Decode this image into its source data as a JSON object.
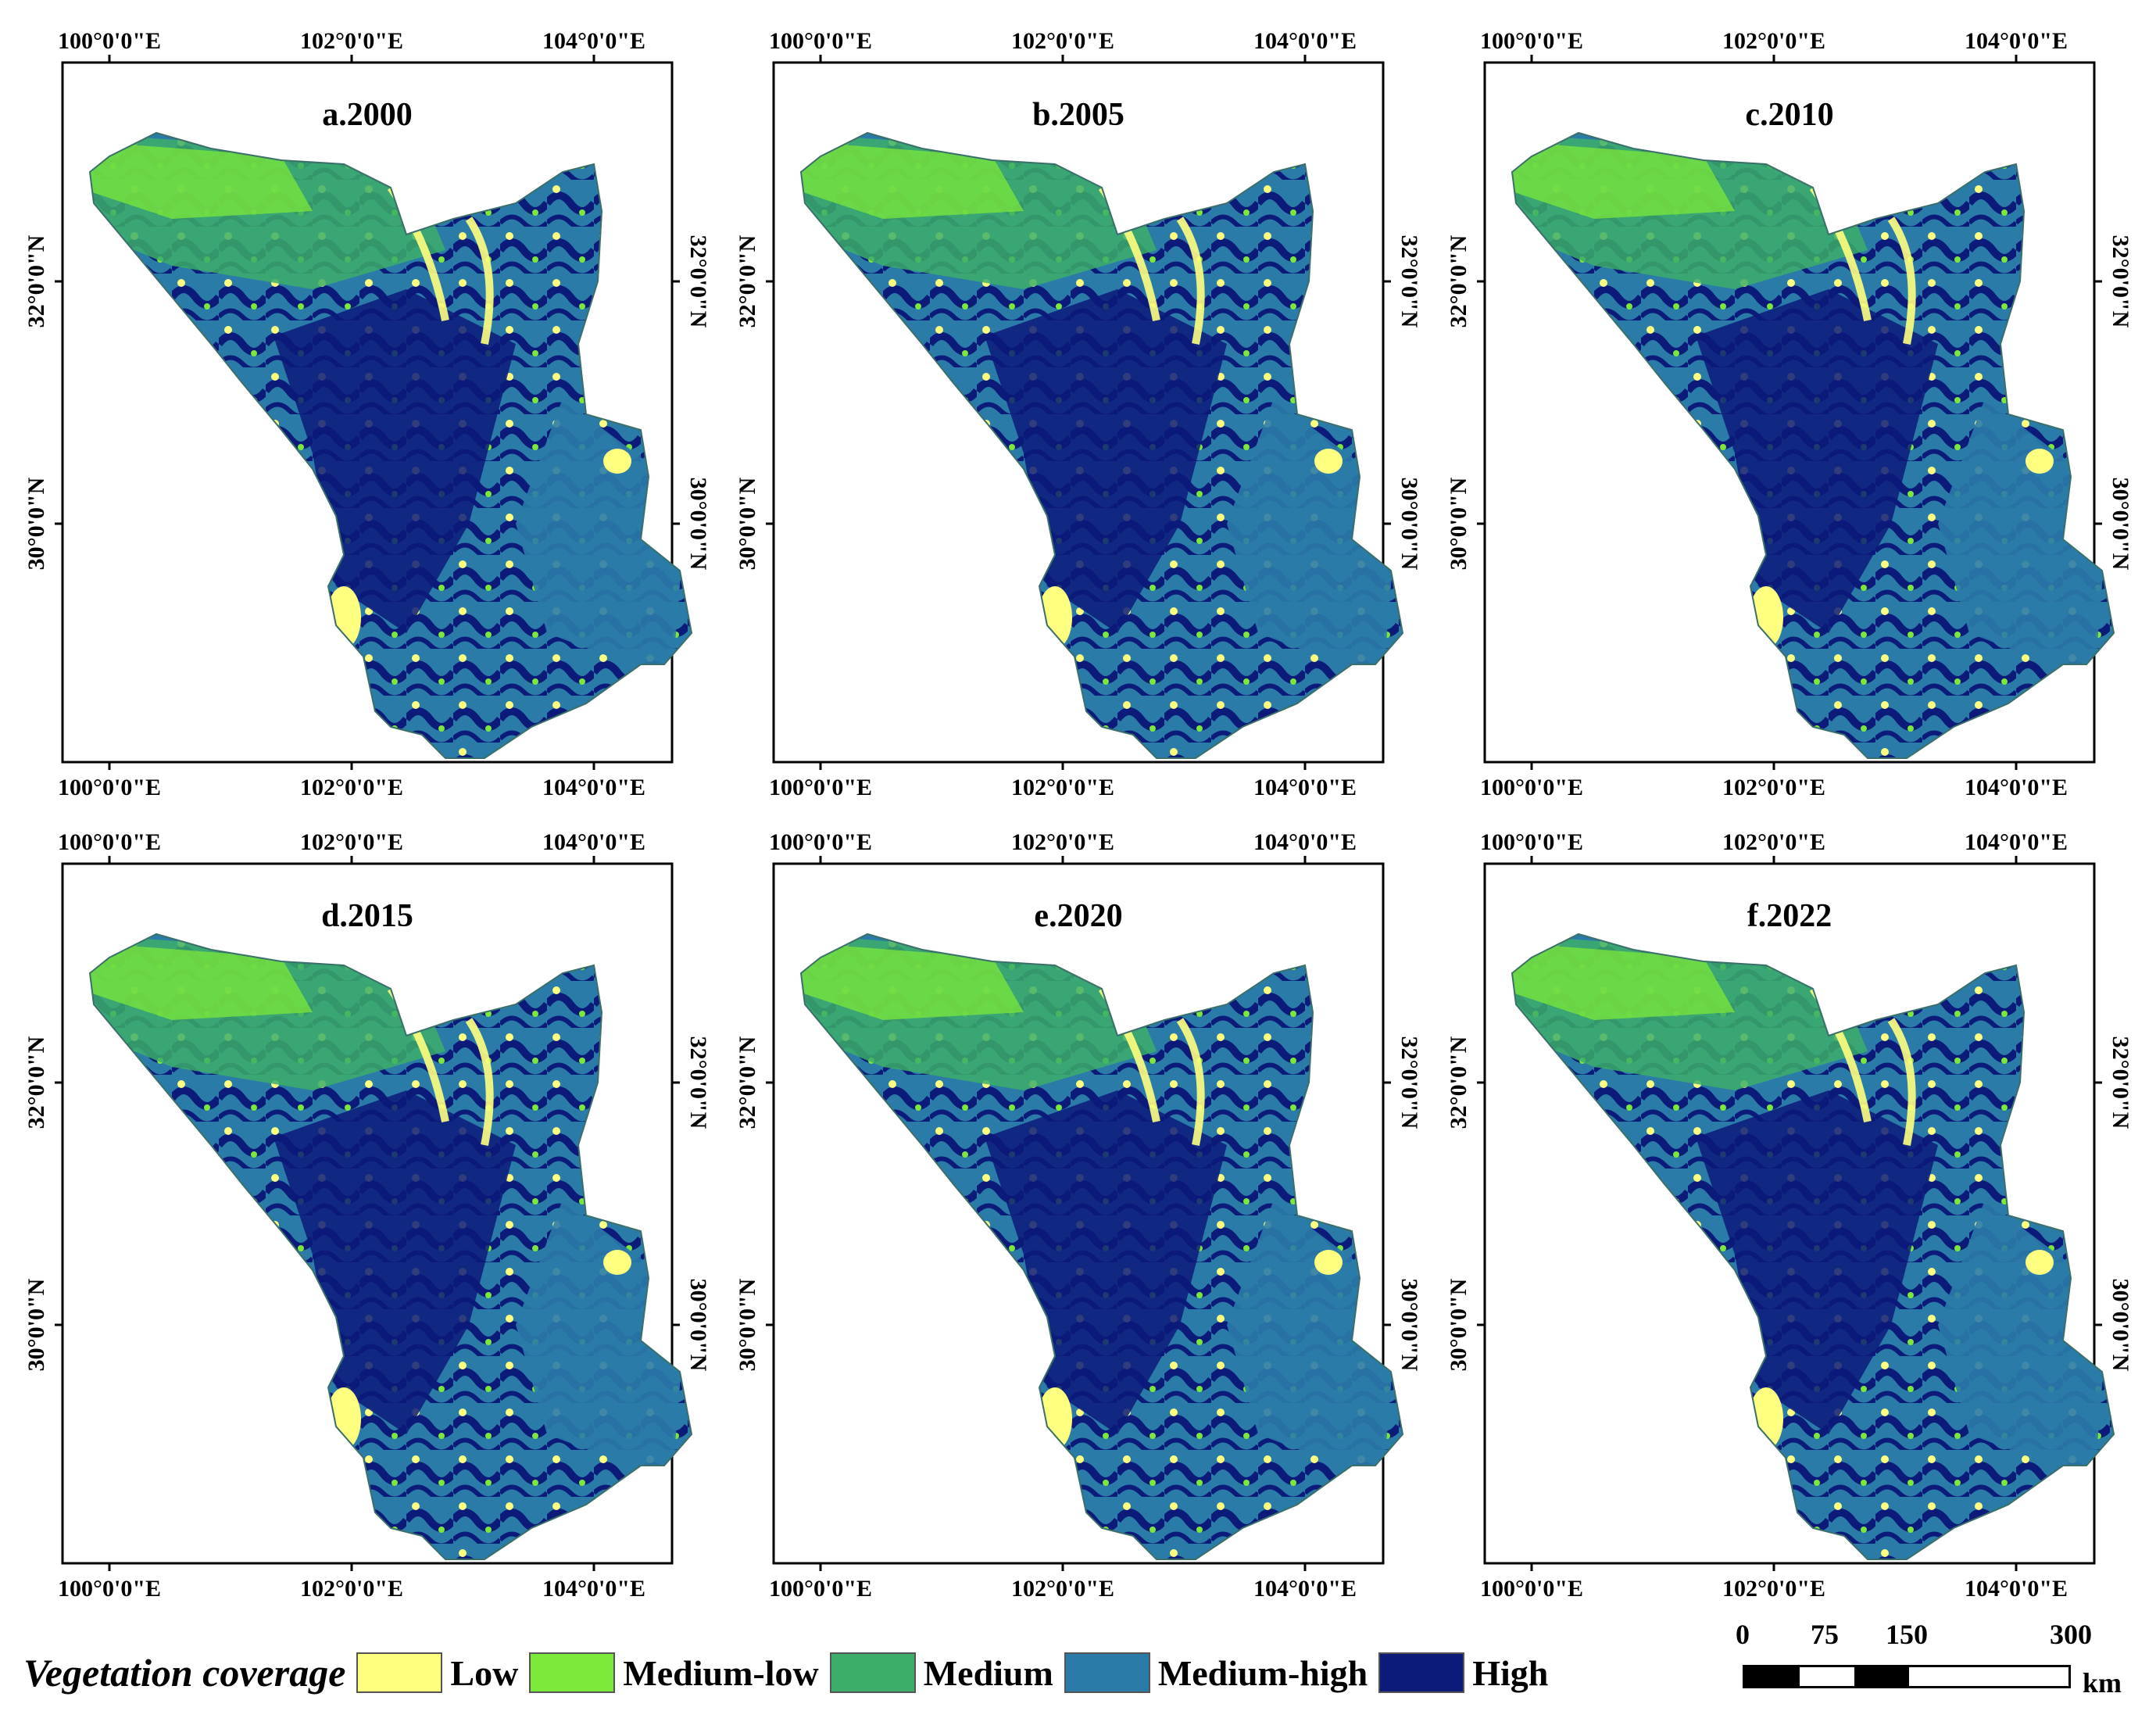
{
  "figure": {
    "panels": [
      {
        "label": "a.2000"
      },
      {
        "label": "b.2005"
      },
      {
        "label": "c.2010"
      },
      {
        "label": "d.2015"
      },
      {
        "label": "e.2020"
      },
      {
        "label": "f.2022"
      }
    ],
    "lon_labels": [
      "100°0'0\"E",
      "102°0'0\"E",
      "104°0'0\"E"
    ],
    "lat_labels": [
      "32°0'0\"N",
      "30°0'0\"N"
    ]
  },
  "legend": {
    "title": "Vegetation coverage",
    "classes": [
      {
        "label": "Low",
        "color": "#ffff80"
      },
      {
        "label": "Medium-low",
        "color": "#7ce83a"
      },
      {
        "label": "Medium",
        "color": "#3cae6a"
      },
      {
        "label": "Medium-high",
        "color": "#2b7ba8"
      },
      {
        "label": "High",
        "color": "#0c1a7a"
      }
    ]
  },
  "scale_bar": {
    "ticks": [
      "0",
      "75",
      "150",
      "300"
    ],
    "unit": "km"
  }
}
